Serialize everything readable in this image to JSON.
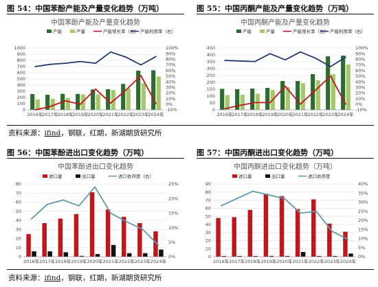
{
  "figures": [
    {
      "fig_label": "图 54：中国苯酚产能及产量变化趋势（万吨）",
      "chart_data": {
        "type": "bar",
        "title": "中国苯酚产能及产量变化趋势",
        "categories": [
          "2016年",
          "2017年",
          "2018年",
          "2019年",
          "2020年",
          "2021年",
          "2022年",
          "2023年",
          "2024年"
        ],
        "series": [
          {
            "name": "产能",
            "kind": "bar",
            "axis": "left",
            "color": "#2e6b30",
            "values": [
              255,
              245,
              260,
              258,
              330,
              335,
              420,
              635,
              640
            ]
          },
          {
            "name": "产量",
            "kind": "bar",
            "axis": "left",
            "color": "#a5c869",
            "values": [
              170,
              180,
              190,
              250,
              250,
              320,
              350,
              430,
              540
            ]
          },
          {
            "name": "产能增长率（右）",
            "kind": "line",
            "axis": "right",
            "color": "#c0171c",
            "values": [
              -10,
              -4,
              6,
              0,
              27,
              2,
              25,
              51,
              1
            ]
          },
          {
            "name": "产能利用率（右）",
            "kind": "line",
            "axis": "right",
            "color": "#1f3a68",
            "values": [
              67,
              71,
              73,
              76,
              73,
              93,
              84,
              70,
              85
            ]
          }
        ],
        "ylim": [
          0,
          1000
        ],
        "yticks": [
          0,
          100,
          200,
          300,
          400,
          500,
          600,
          700,
          800,
          900,
          1000
        ],
        "y2lim": [
          -10,
          100
        ],
        "y2ticks": [
          "-10%",
          "0%",
          "10%",
          "20%",
          "30%",
          "40%",
          "50%",
          "60%",
          "70%",
          "80%",
          "90%",
          "100%"
        ]
      }
    },
    {
      "fig_label": "图 55：中国丙酮产能及产量变化趋势（万吨）",
      "chart_data": {
        "type": "bar",
        "title": "中国丙酮产能及产量变化趋势",
        "categories": [
          "2016年",
          "2017年",
          "2018年",
          "2019年",
          "2020年",
          "2021年",
          "2022年",
          "2023年",
          "2024年"
        ],
        "series": [
          {
            "name": "产能",
            "kind": "bar",
            "axis": "left",
            "color": "#2e6b30",
            "values": [
              153,
              150,
              155,
              160,
              210,
              210,
              260,
              390,
              395
            ]
          },
          {
            "name": "产量",
            "kind": "bar",
            "axis": "left",
            "color": "#a5c869",
            "values": [
              108,
              110,
              118,
              145,
              165,
              195,
              215,
              260,
              330
            ]
          },
          {
            "name": "产能增长率（右）",
            "kind": "line",
            "axis": "right",
            "color": "#c0171c",
            "values": [
              -8,
              -2,
              3,
              3,
              32,
              0,
              25,
              50,
              0
            ]
          },
          {
            "name": "产能利用率（右）",
            "kind": "line",
            "axis": "right",
            "color": "#1f3a68",
            "values": [
              78,
              77,
              76,
              90,
              79,
              93,
              82,
              67,
              84
            ]
          }
        ],
        "ylim": [
          0,
          450
        ],
        "yticks": [
          0,
          50,
          100,
          150,
          200,
          250,
          300,
          350,
          400,
          450
        ],
        "y2lim": [
          -10,
          100
        ],
        "y2ticks": [
          "-10%",
          "0%",
          "10%",
          "20%",
          "30%",
          "40%",
          "50%",
          "60%",
          "70%",
          "80%",
          "90%",
          "100%"
        ]
      }
    },
    {
      "fig_label": "图 56：中国苯酚进出口变化趋势（万吨）",
      "chart_data": {
        "type": "bar",
        "title": "中国苯酚进出口变化趋势",
        "categories": [
          "2016年",
          "2017年",
          "2018年",
          "2019年",
          "2020年",
          "2021年",
          "2022年",
          "2023年",
          "2024年"
        ],
        "series": [
          {
            "name": "进口量",
            "kind": "bar",
            "axis": "left",
            "color": "#c0171c",
            "values": [
              25,
              37,
              42,
              47,
              71,
              52,
              44,
              37,
              28
            ]
          },
          {
            "name": "出口量",
            "kind": "bar",
            "axis": "left",
            "color": "#111111",
            "values": [
              6,
              6,
              5,
              1,
              3,
              13,
              4,
              4,
              8
            ]
          },
          {
            "name": "进口依存度（右）",
            "kind": "line",
            "axis": "right",
            "color": "#5e9aa8",
            "values": [
              13,
              18,
              19.5,
              17.5,
              24,
              15,
              12,
              9.5,
              4
            ]
          }
        ],
        "ylim": [
          0,
          80
        ],
        "yticks": [
          0,
          10,
          20,
          30,
          40,
          50,
          60,
          70,
          80
        ],
        "y2lim": [
          0,
          25
        ],
        "y2ticks": [
          "0%",
          "5%",
          "10%",
          "15%",
          "20%",
          "25%"
        ]
      }
    },
    {
      "fig_label": "图 57：中国丙酮进出口变化趋势（万吨）",
      "chart_data": {
        "type": "bar",
        "title": "中国丙酮进出口变化趋势（万吨）",
        "categories": [
          "2016年",
          "2017年",
          "2018年",
          "2019年",
          "2020年",
          "2021年",
          "2022年",
          "2023年",
          "2024年"
        ],
        "series": [
          {
            "name": "进口量",
            "kind": "bar",
            "axis": "left",
            "color": "#c0171c",
            "values": [
              48,
              49,
              58,
              78,
              75,
              59,
              71,
              41,
              31
            ]
          },
          {
            "name": "出口量",
            "kind": "bar",
            "axis": "left",
            "color": "#111111",
            "values": [
              1,
              1,
              1,
              1,
              1,
              6,
              1,
              1,
              4
            ]
          },
          {
            "name": "进口依存度",
            "kind": "line",
            "axis": "right",
            "color": "#5e9aa8",
            "values": [
              28,
              32,
              36,
              34,
              32,
              24,
              25,
              14,
              9.5
            ]
          }
        ],
        "ylim": [
          0,
          90
        ],
        "yticks": [
          0,
          10,
          20,
          30,
          40,
          50,
          60,
          70,
          80,
          90
        ],
        "y2lim": [
          0,
          40
        ],
        "y2ticks": [
          "0%",
          "5%",
          "10%",
          "15%",
          "20%",
          "25%",
          "30%",
          "35%",
          "40%"
        ]
      }
    }
  ],
  "sources": [
    {
      "prefix": "资料来源：",
      "ifind": "ifind",
      "rest": "，钢联，红期，新湖期货研究所"
    },
    {
      "prefix": "资料来源：",
      "ifind": "ifind",
      "rest": "，钢联，红期，新湖期货研究所"
    }
  ]
}
